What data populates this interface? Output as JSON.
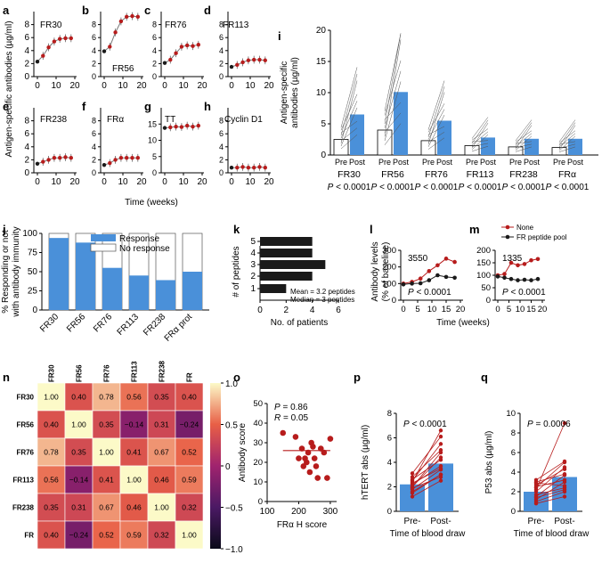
{
  "panel_labels": [
    "a",
    "b",
    "c",
    "d",
    "e",
    "f",
    "g",
    "h",
    "i",
    "j",
    "k",
    "l",
    "m",
    "n",
    "o",
    "p",
    "q"
  ],
  "shared": {
    "small_ylabel": "Antigen-specific antibodies (µg/ml)",
    "small_xlabel": "Time (weeks)",
    "i_ylabel_line1": "Antigen-specific",
    "i_ylabel_line2": "antibodies (µg/ml)",
    "j_ylabel_line1": "% Responding or not",
    "j_ylabel_line2": "with antibody immunity",
    "pre": "Pre",
    "post": "Post",
    "pvalue": "P < 0.0001",
    "time_pre": "Pre-",
    "time_post": "Post-",
    "time_of_draw": "Time of blood draw"
  },
  "colors": {
    "red": "#b71c1c",
    "blue": "#4a90d9",
    "black": "#1a1a1a",
    "gray": "#555555"
  },
  "chart_data": [
    {
      "panel": "a",
      "type": "line",
      "title": "FR30",
      "x": [
        0,
        3,
        6,
        9,
        12,
        15,
        18
      ],
      "y": [
        2.3,
        3.2,
        4.5,
        5.4,
        5.8,
        5.9,
        5.9
      ],
      "ylim": [
        0,
        10
      ],
      "yticks": [
        0,
        2,
        4,
        6,
        8
      ],
      "xticks": [
        0,
        10,
        20
      ],
      "xlabel": "",
      "ylabel": ""
    },
    {
      "panel": "b",
      "type": "line",
      "title": "FR56",
      "x": [
        0,
        3,
        6,
        9,
        12,
        15,
        18
      ],
      "y": [
        3.9,
        4.6,
        6.8,
        8.5,
        9.2,
        9.3,
        9.2
      ],
      "ylim": [
        0,
        10
      ],
      "yticks": [
        0,
        2,
        4,
        6,
        8
      ],
      "xticks": [
        0,
        10,
        20
      ],
      "xlabel": "",
      "ylabel": ""
    },
    {
      "panel": "c",
      "type": "line",
      "title": "FR76",
      "x": [
        0,
        3,
        6,
        9,
        12,
        15,
        18
      ],
      "y": [
        2.1,
        2.6,
        3.6,
        4.6,
        4.8,
        4.7,
        4.9
      ],
      "ylim": [
        0,
        10
      ],
      "yticks": [
        0,
        2,
        4,
        6,
        8
      ],
      "xticks": [
        0,
        10,
        20
      ],
      "xlabel": "",
      "ylabel": ""
    },
    {
      "panel": "d",
      "type": "line",
      "title": "FR113",
      "x": [
        0,
        3,
        6,
        9,
        12,
        15,
        18
      ],
      "y": [
        1.5,
        1.8,
        2.2,
        2.5,
        2.6,
        2.6,
        2.5
      ],
      "ylim": [
        0,
        10
      ],
      "yticks": [
        0,
        2,
        4,
        6,
        8
      ],
      "xticks": [
        0,
        10,
        20
      ],
      "xlabel": "",
      "ylabel": ""
    },
    {
      "panel": "e",
      "type": "line",
      "title": "FR238",
      "x": [
        0,
        3,
        6,
        9,
        12,
        15,
        18
      ],
      "y": [
        1.4,
        1.7,
        2.0,
        2.3,
        2.3,
        2.4,
        2.3
      ],
      "ylim": [
        0,
        10
      ],
      "yticks": [
        0,
        2,
        4,
        6,
        8
      ],
      "xticks": [
        0,
        10,
        20
      ],
      "xlabel": "",
      "ylabel": ""
    },
    {
      "panel": "f",
      "type": "line",
      "title": "FRα",
      "x": [
        0,
        3,
        6,
        9,
        12,
        15,
        18
      ],
      "y": [
        1.2,
        1.5,
        2.0,
        2.3,
        2.3,
        2.3,
        2.3
      ],
      "ylim": [
        0,
        10
      ],
      "yticks": [
        0,
        2,
        4,
        6,
        8
      ],
      "xticks": [
        0,
        10,
        20
      ],
      "xlabel": "",
      "ylabel": ""
    },
    {
      "panel": "g",
      "type": "line",
      "title": "TT",
      "x": [
        0,
        3,
        6,
        9,
        12,
        15,
        18
      ],
      "y": [
        13.8,
        14.0,
        14.2,
        14.1,
        14.5,
        14.2,
        14.5
      ],
      "ylim": [
        0,
        20
      ],
      "yticks": [
        0,
        5,
        10,
        15
      ],
      "xticks": [
        0,
        10,
        20
      ],
      "xlabel": "",
      "ylabel": ""
    },
    {
      "panel": "h",
      "type": "line",
      "title": "Cyclin D1",
      "x": [
        0,
        3,
        6,
        9,
        12,
        15,
        18
      ],
      "y": [
        0.8,
        0.8,
        0.9,
        0.8,
        0.8,
        0.9,
        0.8
      ],
      "ylim": [
        0,
        10
      ],
      "yticks": [
        0,
        2,
        4,
        6,
        8
      ],
      "xticks": [
        0,
        10,
        20
      ],
      "xlabel": "",
      "ylabel": ""
    },
    {
      "panel": "i",
      "type": "bar",
      "title": "",
      "categories": [
        "FR30",
        "FR56",
        "FR76",
        "FR113",
        "FR238",
        "FRα"
      ],
      "series": [
        {
          "name": "Pre",
          "values": [
            2.5,
            4.0,
            2.3,
            1.5,
            1.3,
            1.2
          ]
        },
        {
          "name": "Post",
          "values": [
            6.5,
            10.1,
            5.5,
            2.8,
            2.6,
            2.6
          ]
        }
      ],
      "pvalues": [
        "P < 0.0001",
        "P < 0.0001",
        "P < 0.0001",
        "P < 0.0001",
        "P < 0.0001",
        "P < 0.0001"
      ],
      "ylim": [
        0,
        20
      ],
      "yticks": [
        0,
        5,
        10,
        15,
        20
      ],
      "xlabel": "",
      "ylabel": "Antigen-specific antibodies (µg/ml)"
    },
    {
      "panel": "j",
      "type": "bar",
      "title": "",
      "categories": [
        "FR30",
        "FR56",
        "FR76",
        "FR113",
        "FR238",
        "FRα prot"
      ],
      "series": [
        {
          "name": "Response",
          "values": [
            94,
            88,
            55,
            45,
            39,
            50
          ]
        },
        {
          "name": "No response",
          "values": [
            6,
            12,
            45,
            55,
            61,
            50
          ]
        }
      ],
      "ylim": [
        0,
        100
      ],
      "yticks": [
        0,
        25,
        50,
        75,
        100
      ],
      "xlabel": "",
      "ylabel": "% Responding or not with antibody immunity"
    },
    {
      "panel": "k",
      "type": "bar",
      "orientation": "horizontal",
      "categories": [
        "1",
        "2",
        "3",
        "4",
        "5"
      ],
      "values": [
        2,
        4,
        5,
        4,
        4
      ],
      "xlim": [
        0,
        6
      ],
      "xticks": [
        0,
        2,
        4,
        6
      ],
      "xlabel": "No. of patients",
      "ylabel": "# of peptides",
      "annotations": [
        "Mean = 3.2 peptides",
        "Median = 3 peptides"
      ]
    },
    {
      "panel": "l",
      "type": "line",
      "title": "3550",
      "series": [
        {
          "name": "None",
          "x": [
            0,
            3,
            6,
            9,
            12,
            15,
            18
          ],
          "y": [
            100,
            110,
            130,
            175,
            210,
            250,
            230
          ]
        },
        {
          "name": "FR peptide pool",
          "x": [
            0,
            3,
            6,
            9,
            12,
            15,
            18
          ],
          "y": [
            95,
            100,
            102,
            120,
            150,
            140,
            135
          ]
        }
      ],
      "ylim": [
        0,
        300
      ],
      "yticks": [
        0,
        100,
        200,
        300
      ],
      "xticks": [
        0,
        5,
        10,
        15,
        20
      ],
      "pvalue": "P < 0.0001",
      "xlabel": "Time (weeks)",
      "ylabel": "Antibody levels (% of baseline)"
    },
    {
      "panel": "m",
      "type": "line",
      "title": "1335",
      "series": [
        {
          "name": "None",
          "x": [
            0,
            3,
            6,
            9,
            12,
            15,
            18
          ],
          "y": [
            100,
            105,
            150,
            140,
            145,
            160,
            165
          ]
        },
        {
          "name": "FR peptide pool",
          "x": [
            0,
            3,
            6,
            9,
            12,
            15,
            18
          ],
          "y": [
            95,
            90,
            85,
            80,
            82,
            80,
            85
          ]
        }
      ],
      "ylim": [
        0,
        200
      ],
      "yticks": [
        0,
        50,
        100,
        150,
        200
      ],
      "xticks": [
        0,
        5,
        10,
        15,
        20
      ],
      "pvalue": "P < 0.0001",
      "xlabel": "",
      "ylabel": ""
    },
    {
      "panel": "n",
      "type": "heatmap",
      "labels": [
        "FR30",
        "FR56",
        "FR76",
        "FR113",
        "FR238",
        "FR"
      ],
      "matrix": [
        [
          1.0,
          0.4,
          0.78,
          0.56,
          0.35,
          0.4
        ],
        [
          0.4,
          1.0,
          0.35,
          -0.14,
          0.31,
          -0.24
        ],
        [
          0.78,
          0.35,
          1.0,
          0.41,
          0.67,
          0.52
        ],
        [
          0.56,
          -0.14,
          0.41,
          1.0,
          0.46,
          0.59
        ],
        [
          0.35,
          0.31,
          0.67,
          0.46,
          1.0,
          0.32
        ],
        [
          0.4,
          -0.24,
          0.52,
          0.59,
          0.32,
          1.0
        ]
      ],
      "colorbar_ticks": [
        "1.0",
        "0.5",
        "0",
        "−0.5",
        "−1.0"
      ],
      "range": [
        -1,
        1
      ]
    },
    {
      "panel": "o",
      "type": "scatter",
      "x": [
        150,
        190,
        200,
        210,
        215,
        220,
        225,
        230,
        235,
        240,
        245,
        250,
        255,
        260,
        270,
        280,
        290,
        300
      ],
      "y": [
        35,
        33,
        22,
        27,
        18,
        22,
        20,
        25,
        15,
        30,
        28,
        22,
        18,
        12,
        27,
        25,
        12,
        32
      ],
      "ylim": [
        0,
        50
      ],
      "yticks": [
        0,
        10,
        20,
        30,
        40,
        50
      ],
      "xlim": [
        100,
        320
      ],
      "xticks": [
        100,
        200,
        300
      ],
      "xlabel": "FRα H score",
      "ylabel": "Antibody score",
      "stats": [
        "P = 0.86",
        "R = 0.05"
      ]
    },
    {
      "panel": "p",
      "type": "bar",
      "categories": [
        "Pre-",
        "Post-"
      ],
      "values": [
        2.2,
        3.9
      ],
      "pairs": [
        [
          1.2,
          2.5
        ],
        [
          1.5,
          3.0
        ],
        [
          1.8,
          3.4
        ],
        [
          2.0,
          4.8
        ],
        [
          2.2,
          3.7
        ],
        [
          2.4,
          6.6
        ],
        [
          2.5,
          5.5
        ],
        [
          2.0,
          4.4
        ],
        [
          1.6,
          3.0
        ],
        [
          2.8,
          5.0
        ],
        [
          3.1,
          6.1
        ],
        [
          1.9,
          2.8
        ],
        [
          2.6,
          4.2
        ],
        [
          2.3,
          3.5
        ]
      ],
      "ylim": [
        0,
        8
      ],
      "yticks": [
        0,
        2,
        4,
        6,
        8
      ],
      "xlabel": "Time of blood draw",
      "ylabel": "hTERT abs (µg/ml)",
      "pvalue": "P < 0.0001"
    },
    {
      "panel": "q",
      "type": "bar",
      "categories": [
        "Pre-",
        "Post-"
      ],
      "values": [
        2.0,
        3.5
      ],
      "pairs": [
        [
          0.8,
          1.5
        ],
        [
          1.0,
          2.0
        ],
        [
          1.2,
          3.0
        ],
        [
          1.5,
          3.7
        ],
        [
          1.7,
          2.4
        ],
        [
          2.0,
          4.5
        ],
        [
          2.2,
          9.0
        ],
        [
          2.4,
          5.0
        ],
        [
          2.5,
          3.2
        ],
        [
          2.7,
          4.3
        ],
        [
          2.9,
          2.6
        ],
        [
          3.0,
          3.8
        ],
        [
          1.4,
          2.2
        ],
        [
          3.2,
          5.1
        ]
      ],
      "ylim": [
        0,
        10
      ],
      "yticks": [
        0,
        2,
        4,
        6,
        8,
        10
      ],
      "xlabel": "Time of blood draw",
      "ylabel": "P53 abs (µg/ml)",
      "pvalue": "P = 0.0006"
    }
  ]
}
